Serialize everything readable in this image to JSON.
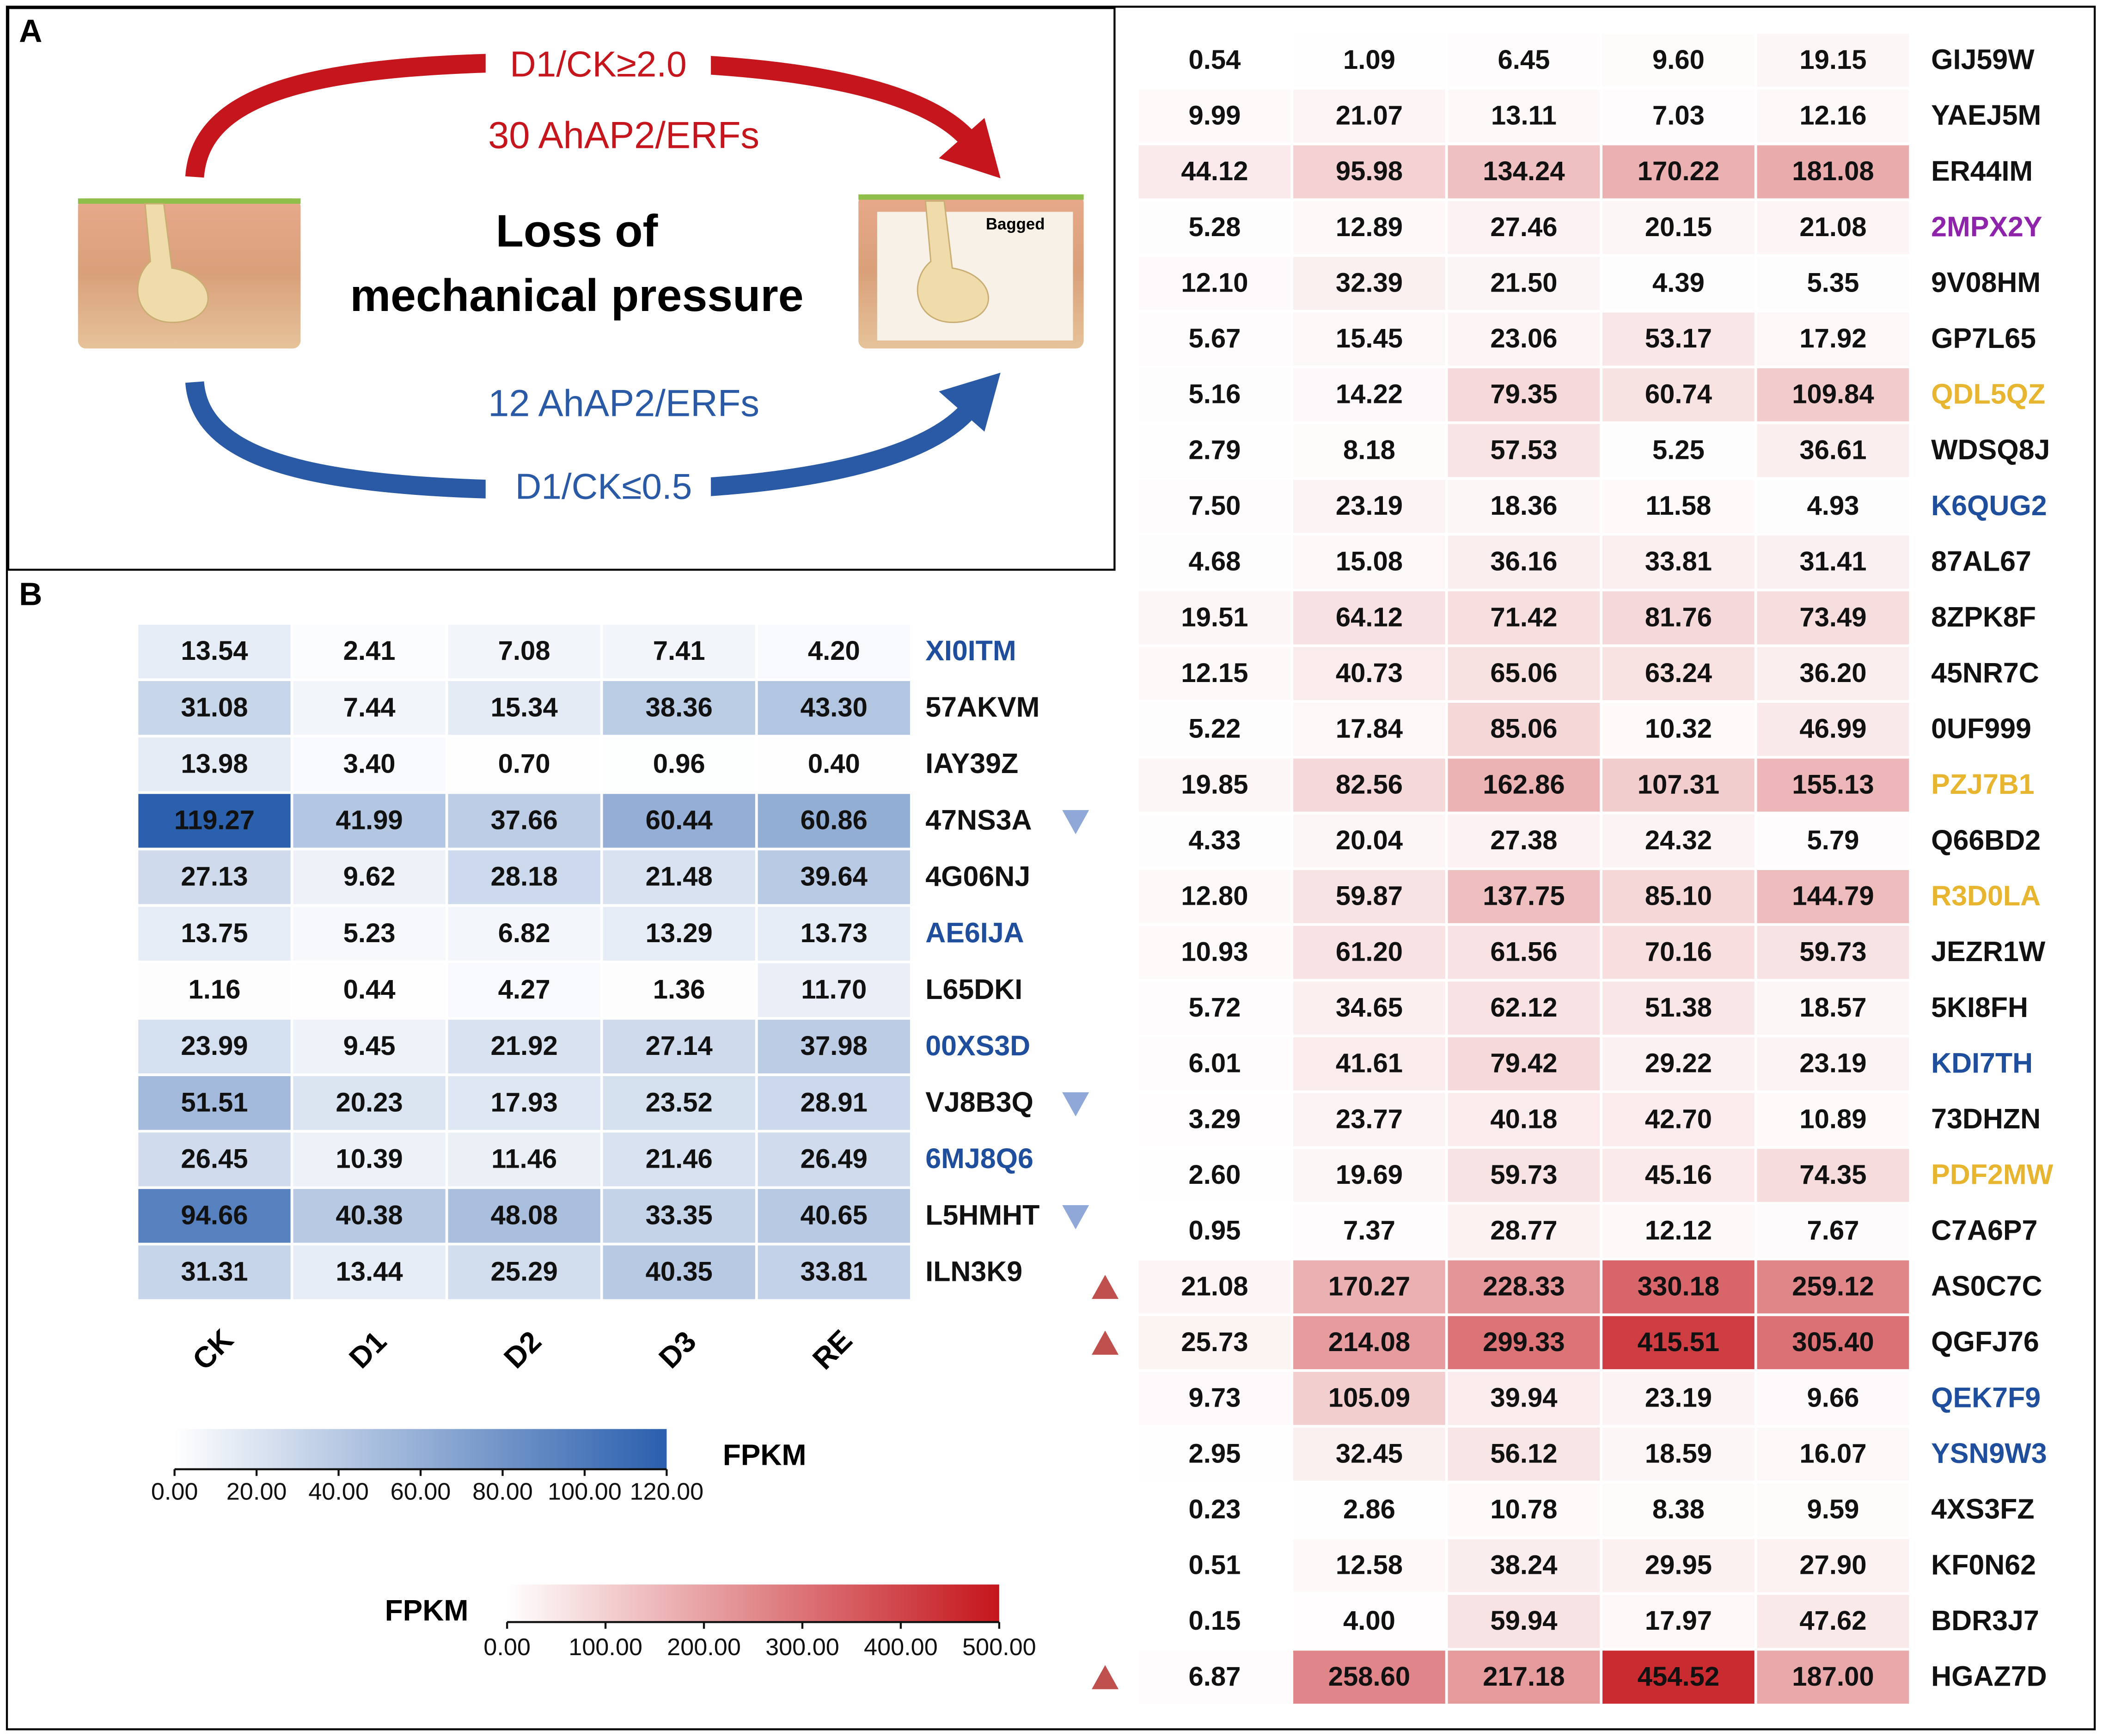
{
  "panel_labels": [
    "A",
    "B"
  ],
  "panel_a": {
    "up_condition": "D1/CK≥2.0",
    "up_count": "30 AhAP2/ERFs",
    "title_line1": "Loss of",
    "title_line2": "mechanical pressure",
    "down_count": "12 AhAP2/ERFs",
    "down_condition": "D1/CK≤0.5",
    "image_label": "Bagged"
  },
  "chart_data": [
    {
      "type": "heatmap",
      "categories": [
        "CK",
        "D1",
        "D2",
        "D3",
        "RE"
      ],
      "colormap": [
        "#ffffff",
        "#2a5fad"
      ],
      "colorbar": {
        "title": "FPKM",
        "lim": [
          0,
          120
        ],
        "ticks": [
          {
            "value": 0,
            "label": "0.00"
          },
          {
            "value": 20,
            "label": "20.00"
          },
          {
            "value": 40,
            "label": "40.00"
          },
          {
            "value": 60,
            "label": "60.00"
          },
          {
            "value": 80,
            "label": "80.00"
          },
          {
            "value": 100,
            "label": "100.00"
          },
          {
            "value": 120,
            "label": "120.00"
          }
        ]
      },
      "series": [
        {
          "name": "XI0ITM",
          "color": "#1f4e9c",
          "values": [
            13.54,
            2.41,
            7.08,
            7.41,
            4.2
          ],
          "value_labels": [
            "13.54",
            "2.41",
            "7.08",
            "7.41",
            "4.20"
          ]
        },
        {
          "name": "57AKVM",
          "color": "#111111",
          "values": [
            31.08,
            7.44,
            15.34,
            38.36,
            43.3
          ],
          "value_labels": [
            "31.08",
            "7.44",
            "15.34",
            "38.36",
            "43.30"
          ]
        },
        {
          "name": "IAY39Z",
          "color": "#111111",
          "values": [
            13.98,
            3.4,
            0.7,
            0.96,
            0.4
          ],
          "value_labels": [
            "13.98",
            "3.40",
            "0.70",
            "0.96",
            "0.40"
          ]
        },
        {
          "name": "47NS3A",
          "color": "#111111",
          "marker": "down",
          "values": [
            119.27,
            41.99,
            37.66,
            60.44,
            60.86
          ],
          "value_labels": [
            "119.27",
            "41.99",
            "37.66",
            "60.44",
            "60.86"
          ]
        },
        {
          "name": "4G06NJ",
          "color": "#111111",
          "values": [
            27.13,
            9.62,
            28.18,
            21.48,
            39.64
          ],
          "value_labels": [
            "27.13",
            "9.62",
            "28.18",
            "21.48",
            "39.64"
          ]
        },
        {
          "name": "AE6IJA",
          "color": "#1f4e9c",
          "values": [
            13.75,
            5.23,
            6.82,
            13.29,
            13.73
          ],
          "value_labels": [
            "13.75",
            "5.23",
            "6.82",
            "13.29",
            "13.73"
          ]
        },
        {
          "name": "L65DKI",
          "color": "#111111",
          "values": [
            1.16,
            0.44,
            4.27,
            1.36,
            11.7
          ],
          "value_labels": [
            "1.16",
            "0.44",
            "4.27",
            "1.36",
            "11.70"
          ]
        },
        {
          "name": "00XS3D",
          "color": "#1f4e9c",
          "values": [
            23.99,
            9.45,
            21.92,
            27.14,
            37.98
          ],
          "value_labels": [
            "23.99",
            "9.45",
            "21.92",
            "27.14",
            "37.98"
          ]
        },
        {
          "name": "VJ8B3Q",
          "color": "#111111",
          "marker": "down",
          "values": [
            51.51,
            20.23,
            17.93,
            23.52,
            28.91
          ],
          "value_labels": [
            "51.51",
            "20.23",
            "17.93",
            "23.52",
            "28.91"
          ]
        },
        {
          "name": "6MJ8Q6",
          "color": "#1f4e9c",
          "values": [
            26.45,
            10.39,
            11.46,
            21.46,
            26.49
          ],
          "value_labels": [
            "26.45",
            "10.39",
            "11.46",
            "21.46",
            "26.49"
          ]
        },
        {
          "name": "L5HMHT",
          "color": "#111111",
          "marker": "down",
          "values": [
            94.66,
            40.38,
            48.08,
            33.35,
            40.65
          ],
          "value_labels": [
            "94.66",
            "40.38",
            "48.08",
            "33.35",
            "40.65"
          ]
        },
        {
          "name": "ILN3K9",
          "color": "#111111",
          "values": [
            31.31,
            13.44,
            25.29,
            40.35,
            33.81
          ],
          "value_labels": [
            "31.31",
            "13.44",
            "25.29",
            "40.35",
            "33.81"
          ]
        }
      ]
    },
    {
      "type": "heatmap",
      "colormap": [
        "#ffffff",
        "#c4161c"
      ],
      "colorbar": {
        "title": "FPKM",
        "lim": [
          0,
          500
        ],
        "ticks": [
          {
            "value": 0,
            "label": "0.00"
          },
          {
            "value": 100,
            "label": "100.00"
          },
          {
            "value": 200,
            "label": "200.00"
          },
          {
            "value": 300,
            "label": "300.00"
          },
          {
            "value": 400,
            "label": "400.00"
          },
          {
            "value": 500,
            "label": "500.00"
          }
        ]
      },
      "series": [
        {
          "name": "GIJ59W",
          "color": "#111111",
          "values": [
            0.54,
            1.09,
            6.45,
            9.6,
            19.15
          ],
          "value_labels": [
            "0.54",
            "1.09",
            "6.45",
            "9.60",
            "19.15"
          ]
        },
        {
          "name": "YAEJ5M",
          "color": "#111111",
          "values": [
            9.99,
            21.07,
            13.11,
            7.03,
            12.16
          ],
          "value_labels": [
            "9.99",
            "21.07",
            "13.11",
            "7.03",
            "12.16"
          ]
        },
        {
          "name": "ER44IM",
          "color": "#111111",
          "values": [
            44.12,
            95.98,
            134.24,
            170.22,
            181.08
          ],
          "value_labels": [
            "44.12",
            "95.98",
            "134.24",
            "170.22",
            "181.08"
          ]
        },
        {
          "name": "2MPX2Y",
          "color": "#8e24aa",
          "values": [
            5.28,
            12.89,
            27.46,
            20.15,
            21.08
          ],
          "value_labels": [
            "5.28",
            "12.89",
            "27.46",
            "20.15",
            "21.08"
          ]
        },
        {
          "name": "9V08HM",
          "color": "#111111",
          "values": [
            12.1,
            32.39,
            21.5,
            4.39,
            5.35
          ],
          "value_labels": [
            "12.10",
            "32.39",
            "21.50",
            "4.39",
            "5.35"
          ]
        },
        {
          "name": "GP7L65",
          "color": "#111111",
          "values": [
            5.67,
            15.45,
            23.06,
            53.17,
            17.92
          ],
          "value_labels": [
            "5.67",
            "15.45",
            "23.06",
            "53.17",
            "17.92"
          ]
        },
        {
          "name": "QDL5QZ",
          "color": "#e8b530",
          "values": [
            5.16,
            14.22,
            79.35,
            60.74,
            109.84
          ],
          "value_labels": [
            "5.16",
            "14.22",
            "79.35",
            "60.74",
            "109.84"
          ]
        },
        {
          "name": "WDSQ8J",
          "color": "#111111",
          "values": [
            2.79,
            8.18,
            57.53,
            5.25,
            36.61
          ],
          "value_labels": [
            "2.79",
            "8.18",
            "57.53",
            "5.25",
            "36.61"
          ]
        },
        {
          "name": "K6QUG2",
          "color": "#1f4e9c",
          "values": [
            7.5,
            23.19,
            18.36,
            11.58,
            4.93
          ],
          "value_labels": [
            "7.50",
            "23.19",
            "18.36",
            "11.58",
            "4.93"
          ]
        },
        {
          "name": "87AL67",
          "color": "#111111",
          "values": [
            4.68,
            15.08,
            36.16,
            33.81,
            31.41
          ],
          "value_labels": [
            "4.68",
            "15.08",
            "36.16",
            "33.81",
            "31.41"
          ]
        },
        {
          "name": "8ZPK8F",
          "color": "#111111",
          "values": [
            19.51,
            64.12,
            71.42,
            81.76,
            73.49
          ],
          "value_labels": [
            "19.51",
            "64.12",
            "71.42",
            "81.76",
            "73.49"
          ]
        },
        {
          "name": "45NR7C",
          "color": "#111111",
          "values": [
            12.15,
            40.73,
            65.06,
            63.24,
            36.2
          ],
          "value_labels": [
            "12.15",
            "40.73",
            "65.06",
            "63.24",
            "36.20"
          ]
        },
        {
          "name": "0UF999",
          "color": "#111111",
          "values": [
            5.22,
            17.84,
            85.06,
            10.32,
            46.99
          ],
          "value_labels": [
            "5.22",
            "17.84",
            "85.06",
            "10.32",
            "46.99"
          ]
        },
        {
          "name": "PZJ7B1",
          "color": "#e8b530",
          "values": [
            19.85,
            82.56,
            162.86,
            107.31,
            155.13
          ],
          "value_labels": [
            "19.85",
            "82.56",
            "162.86",
            "107.31",
            "155.13"
          ]
        },
        {
          "name": "Q66BD2",
          "color": "#111111",
          "values": [
            4.33,
            20.04,
            27.38,
            24.32,
            5.79
          ],
          "value_labels": [
            "4.33",
            "20.04",
            "27.38",
            "24.32",
            "5.79"
          ]
        },
        {
          "name": "R3D0LA",
          "color": "#e8b530",
          "values": [
            12.8,
            59.87,
            137.75,
            85.1,
            144.79
          ],
          "value_labels": [
            "12.80",
            "59.87",
            "137.75",
            "85.10",
            "144.79"
          ]
        },
        {
          "name": "JEZR1W",
          "color": "#111111",
          "values": [
            10.93,
            61.2,
            61.56,
            70.16,
            59.73
          ],
          "value_labels": [
            "10.93",
            "61.20",
            "61.56",
            "70.16",
            "59.73"
          ]
        },
        {
          "name": "5KI8FH",
          "color": "#111111",
          "values": [
            5.72,
            34.65,
            62.12,
            51.38,
            18.57
          ],
          "value_labels": [
            "5.72",
            "34.65",
            "62.12",
            "51.38",
            "18.57"
          ]
        },
        {
          "name": "KDI7TH",
          "color": "#1f4e9c",
          "values": [
            6.01,
            41.61,
            79.42,
            29.22,
            23.19
          ],
          "value_labels": [
            "6.01",
            "41.61",
            "79.42",
            "29.22",
            "23.19"
          ]
        },
        {
          "name": "73DHZN",
          "color": "#111111",
          "values": [
            3.29,
            23.77,
            40.18,
            42.7,
            10.89
          ],
          "value_labels": [
            "3.29",
            "23.77",
            "40.18",
            "42.70",
            "10.89"
          ]
        },
        {
          "name": "PDF2MW",
          "color": "#e8b530",
          "values": [
            2.6,
            19.69,
            59.73,
            45.16,
            74.35
          ],
          "value_labels": [
            "2.60",
            "19.69",
            "59.73",
            "45.16",
            "74.35"
          ]
        },
        {
          "name": "C7A6P7",
          "color": "#111111",
          "values": [
            0.95,
            7.37,
            28.77,
            12.12,
            7.67
          ],
          "value_labels": [
            "0.95",
            "7.37",
            "28.77",
            "12.12",
            "7.67"
          ]
        },
        {
          "name": "AS0C7C",
          "color": "#111111",
          "marker": "up",
          "values": [
            21.08,
            170.27,
            228.33,
            330.18,
            259.12
          ],
          "value_labels": [
            "21.08",
            "170.27",
            "228.33",
            "330.18",
            "259.12"
          ]
        },
        {
          "name": "QGFJ76",
          "color": "#111111",
          "marker": "up",
          "values": [
            25.73,
            214.08,
            299.33,
            415.51,
            305.4
          ],
          "value_labels": [
            "25.73",
            "214.08",
            "299.33",
            "415.51",
            "305.40"
          ]
        },
        {
          "name": "QEK7F9",
          "color": "#1f4e9c",
          "values": [
            9.73,
            105.09,
            39.94,
            23.19,
            9.66
          ],
          "value_labels": [
            "9.73",
            "105.09",
            "39.94",
            "23.19",
            "9.66"
          ]
        },
        {
          "name": "YSN9W3",
          "color": "#1f4e9c",
          "values": [
            2.95,
            32.45,
            56.12,
            18.59,
            16.07
          ],
          "value_labels": [
            "2.95",
            "32.45",
            "56.12",
            "18.59",
            "16.07"
          ]
        },
        {
          "name": "4XS3FZ",
          "color": "#111111",
          "values": [
            0.23,
            2.86,
            10.78,
            8.38,
            9.59
          ],
          "value_labels": [
            "0.23",
            "2.86",
            "10.78",
            "8.38",
            "9.59"
          ]
        },
        {
          "name": "KF0N62",
          "color": "#111111",
          "values": [
            0.51,
            12.58,
            38.24,
            29.95,
            27.9
          ],
          "value_labels": [
            "0.51",
            "12.58",
            "38.24",
            "29.95",
            "27.90"
          ]
        },
        {
          "name": "BDR3J7",
          "color": "#111111",
          "values": [
            0.15,
            4.0,
            59.94,
            17.97,
            47.62
          ],
          "value_labels": [
            "0.15",
            "4.00",
            "59.94",
            "17.97",
            "47.62"
          ]
        },
        {
          "name": "HGAZ7D",
          "color": "#111111",
          "marker": "up",
          "values": [
            6.87,
            258.6,
            217.18,
            454.52,
            187.0
          ],
          "value_labels": [
            "6.87",
            "258.60",
            "217.18",
            "454.52",
            "187.00"
          ]
        }
      ]
    }
  ]
}
